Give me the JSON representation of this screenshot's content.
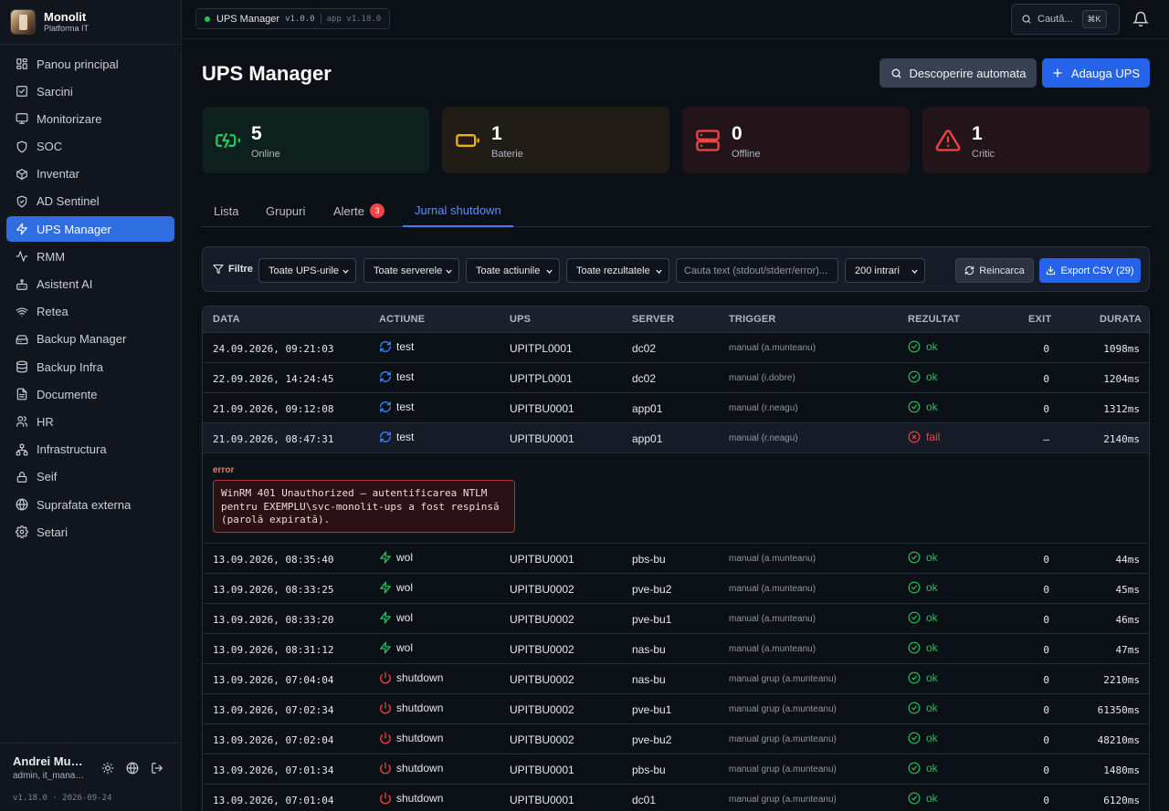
{
  "brand": {
    "title": "Monolit",
    "subtitle": "Platforma IT"
  },
  "nav": [
    {
      "label": "Panou principal",
      "icon": "dashboard-icon"
    },
    {
      "label": "Sarcini",
      "icon": "checkbox-icon"
    },
    {
      "label": "Monitorizare",
      "icon": "monitor-icon"
    },
    {
      "label": "SOC",
      "icon": "shield-icon"
    },
    {
      "label": "Inventar",
      "icon": "box-icon"
    },
    {
      "label": "AD Sentinel",
      "icon": "shield-check-icon"
    },
    {
      "label": "UPS Manager",
      "icon": "bolt-icon",
      "active": true
    },
    {
      "label": "RMM",
      "icon": "activity-icon"
    },
    {
      "label": "Asistent AI",
      "icon": "bot-icon"
    },
    {
      "label": "Retea",
      "icon": "wifi-icon"
    },
    {
      "label": "Backup Manager",
      "icon": "hard-drive-icon"
    },
    {
      "label": "Backup Infra",
      "icon": "database-icon"
    },
    {
      "label": "Documente",
      "icon": "file-icon"
    },
    {
      "label": "HR",
      "icon": "users-icon"
    },
    {
      "label": "Infrastructura",
      "icon": "network-icon"
    },
    {
      "label": "Seif",
      "icon": "lock-icon"
    },
    {
      "label": "Suprafata externa",
      "icon": "globe-icon"
    },
    {
      "label": "Setari",
      "icon": "gear-icon"
    }
  ],
  "user": {
    "name": "Andrei Munteanu",
    "role": "admin, it_manager",
    "version": "v1.18.0 · 2026-09-24"
  },
  "topbar": {
    "app_name": "UPS Manager",
    "app_version": "v1.0.0",
    "platform_version": "app v1.18.0",
    "search_label": "Caută...",
    "search_shortcut": "⌘K"
  },
  "page": {
    "title": "UPS Manager",
    "discover_label": "Descoperire automata",
    "add_label": "Adauga UPS"
  },
  "stats": [
    {
      "value": "5",
      "label": "Online"
    },
    {
      "value": "1",
      "label": "Baterie"
    },
    {
      "value": "0",
      "label": "Offline"
    },
    {
      "value": "1",
      "label": "Critic"
    }
  ],
  "tabs": [
    {
      "label": "Lista"
    },
    {
      "label": "Grupuri"
    },
    {
      "label": "Alerte",
      "badge": "3"
    },
    {
      "label": "Jurnal shutdown",
      "active": true
    }
  ],
  "filters": {
    "label": "Filtre",
    "ups": "Toate UPS-urile",
    "servers": "Toate serverele",
    "actions": "Toate actiunile",
    "results": "Toate rezultatele",
    "text_placeholder": "Cauta text (stdout/stderr/error)...",
    "limit": "200 intrari",
    "reload_label": "Reincarca",
    "export_label": "Export CSV (29)"
  },
  "table": {
    "headers": {
      "date": "DATA",
      "action": "ACTIUNE",
      "ups": "UPS",
      "server": "SERVER",
      "trigger": "TRIGGER",
      "result": "REZULTAT",
      "exit": "EXIT",
      "duration": "DURATA"
    },
    "rows": [
      {
        "date": "24.09.2026, 09:21:03",
        "action": "test",
        "ups": "UPITPL0001",
        "server": "dc02",
        "trigger": "manual (a.munteanu)",
        "result": "ok",
        "exit": "0",
        "duration": "1098ms"
      },
      {
        "date": "22.09.2026, 14:24:45",
        "action": "test",
        "ups": "UPITPL0001",
        "server": "dc02",
        "trigger": "manual (i.dobre)",
        "result": "ok",
        "exit": "0",
        "duration": "1204ms"
      },
      {
        "date": "21.09.2026, 09:12:08",
        "action": "test",
        "ups": "UPITBU0001",
        "server": "app01",
        "trigger": "manual (r.neagu)",
        "result": "ok",
        "exit": "0",
        "duration": "1312ms"
      },
      {
        "date": "21.09.2026, 08:47:31",
        "action": "test",
        "ups": "UPITBU0001",
        "server": "app01",
        "trigger": "manual (r.neagu)",
        "result": "fail",
        "exit": "–",
        "duration": "2140ms",
        "expanded": true
      },
      {
        "date": "13.09.2026, 08:35:40",
        "action": "wol",
        "ups": "UPITBU0001",
        "server": "pbs-bu",
        "trigger": "manual (a.munteanu)",
        "result": "ok",
        "exit": "0",
        "duration": "44ms"
      },
      {
        "date": "13.09.2026, 08:33:25",
        "action": "wol",
        "ups": "UPITBU0002",
        "server": "pve-bu2",
        "trigger": "manual (a.munteanu)",
        "result": "ok",
        "exit": "0",
        "duration": "45ms"
      },
      {
        "date": "13.09.2026, 08:33:20",
        "action": "wol",
        "ups": "UPITBU0002",
        "server": "pve-bu1",
        "trigger": "manual (a.munteanu)",
        "result": "ok",
        "exit": "0",
        "duration": "46ms"
      },
      {
        "date": "13.09.2026, 08:31:12",
        "action": "wol",
        "ups": "UPITBU0002",
        "server": "nas-bu",
        "trigger": "manual (a.munteanu)",
        "result": "ok",
        "exit": "0",
        "duration": "47ms"
      },
      {
        "date": "13.09.2026, 07:04:04",
        "action": "shutdown",
        "ups": "UPITBU0002",
        "server": "nas-bu",
        "trigger": "manual grup (a.munteanu)",
        "result": "ok",
        "exit": "0",
        "duration": "2210ms"
      },
      {
        "date": "13.09.2026, 07:02:34",
        "action": "shutdown",
        "ups": "UPITBU0002",
        "server": "pve-bu1",
        "trigger": "manual grup (a.munteanu)",
        "result": "ok",
        "exit": "0",
        "duration": "61350ms"
      },
      {
        "date": "13.09.2026, 07:02:04",
        "action": "shutdown",
        "ups": "UPITBU0002",
        "server": "pve-bu2",
        "trigger": "manual grup (a.munteanu)",
        "result": "ok",
        "exit": "0",
        "duration": "48210ms"
      },
      {
        "date": "13.09.2026, 07:01:34",
        "action": "shutdown",
        "ups": "UPITBU0001",
        "server": "pbs-bu",
        "trigger": "manual grup (a.munteanu)",
        "result": "ok",
        "exit": "0",
        "duration": "1480ms"
      },
      {
        "date": "13.09.2026, 07:01:04",
        "action": "shutdown",
        "ups": "UPITBU0001",
        "server": "dc01",
        "trigger": "manual grup (a.munteanu)",
        "result": "ok",
        "exit": "0",
        "duration": "6120ms"
      }
    ],
    "error_detail": {
      "label": "error",
      "message": "WinRM 401 Unauthorized — autentificarea NTLM\npentru EXEMPLU\\svc-monolit-ups a fost respinsă\n(parolă expirată)."
    }
  },
  "colors": {
    "accent": "#2563eb",
    "ok": "#22c55e",
    "fail": "#ef4444",
    "warn": "#eab308"
  }
}
